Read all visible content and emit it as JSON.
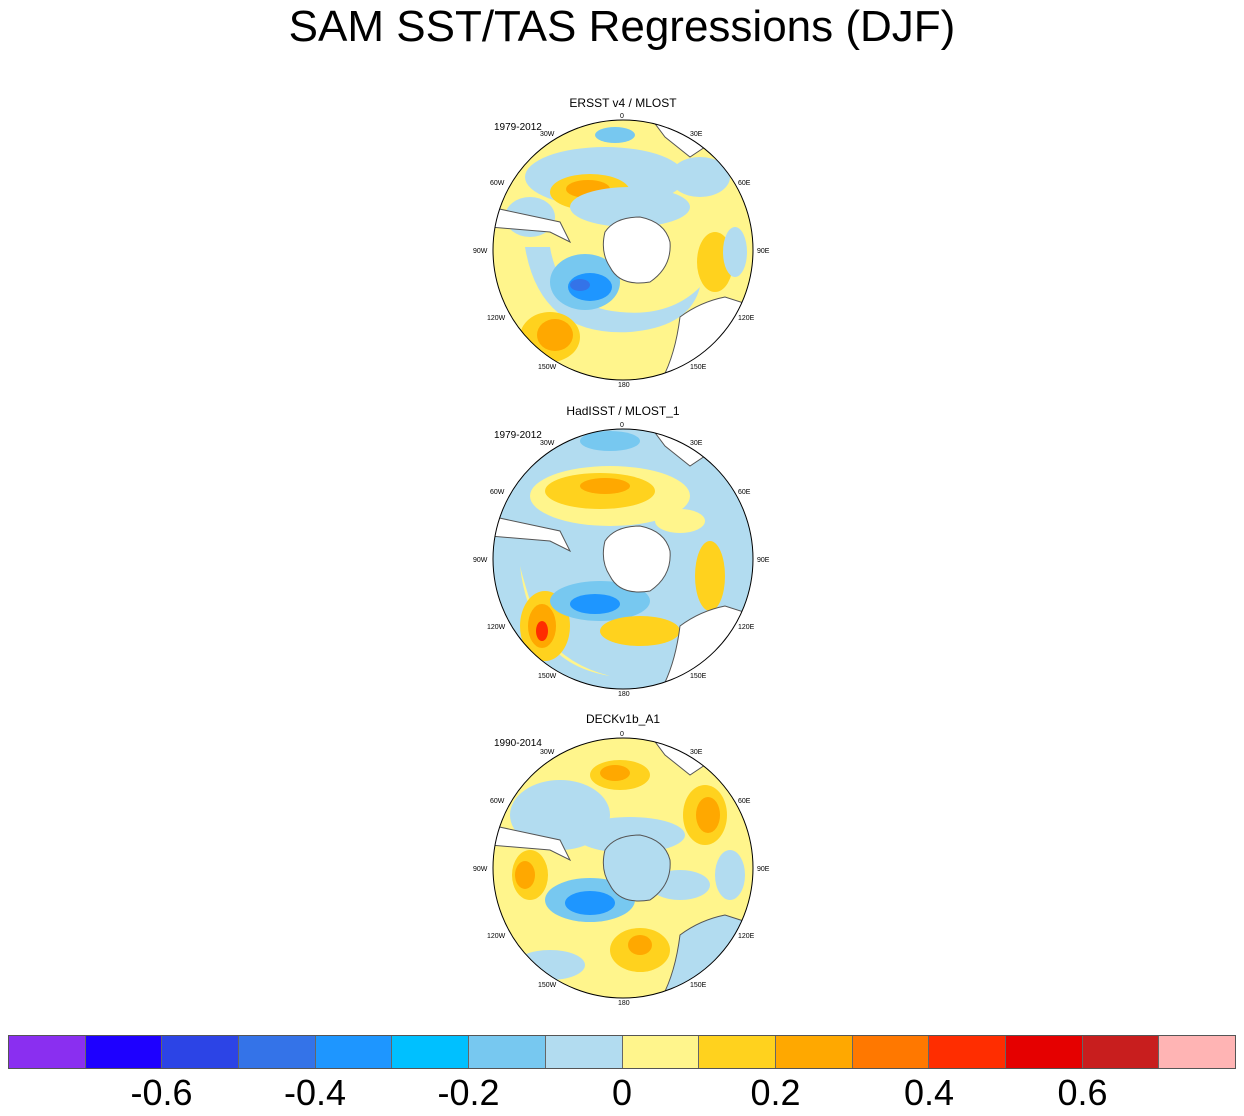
{
  "title": "SAM SST/TAS Regressions (DJF)",
  "panels": [
    {
      "title": "ERSST v4 / MLOST",
      "period": "1979-2012"
    },
    {
      "title": "HadISST / MLOST_1",
      "period": "1979-2012"
    },
    {
      "title": "DECKv1b_A1",
      "period": "1990-2014"
    }
  ],
  "lon_labels": {
    "l0": "0",
    "l30e": "30E",
    "l60e": "60E",
    "l90e": "90E",
    "l120e": "120E",
    "l150e": "150E",
    "l180": "180",
    "l150w": "150W",
    "l120w": "120W",
    "l90w": "90W",
    "l60w": "60W",
    "l30w": "30W"
  },
  "colorbar": {
    "colors": [
      "#8a2ff0",
      "#1e00ff",
      "#2c44e6",
      "#3473e8",
      "#1e96ff",
      "#00c0ff",
      "#77c8f0",
      "#b2dcf0",
      "#fff58c",
      "#ffd21e",
      "#ffa800",
      "#ff7800",
      "#ff2d00",
      "#e50000",
      "#c81e1e",
      "#ffb4b4"
    ],
    "labels": [
      "-0.6",
      "-0.4",
      "-0.2",
      "0",
      "0.2",
      "0.4",
      "0.6"
    ]
  },
  "map_colors": {
    "land": "#ffffff",
    "coast": "#555555",
    "neutral_neg": "#b2dcf0",
    "neutral_pos": "#fff58c"
  }
}
